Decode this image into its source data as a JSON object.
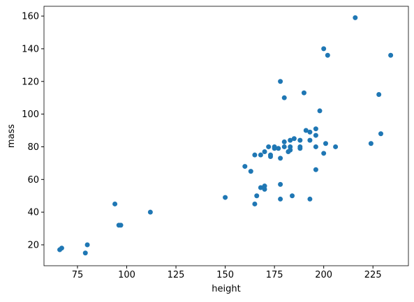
{
  "chart_data": {
    "type": "scatter",
    "x_label": "height",
    "y_label": "mass",
    "color": "#1f77b4",
    "x": [
      66,
      67,
      79,
      80,
      94,
      96,
      97,
      112,
      150,
      160,
      163,
      165,
      166,
      165,
      168,
      168,
      170,
      170,
      170,
      172,
      173,
      173,
      175,
      175,
      177,
      178,
      178,
      178,
      178,
      180,
      180,
      180,
      182,
      183,
      183,
      183,
      184,
      185,
      188,
      188,
      188,
      190,
      191,
      193,
      193,
      193,
      196,
      196,
      196,
      196,
      198,
      200,
      200,
      201,
      202,
      206,
      216,
      224,
      228,
      229,
      234
    ],
    "values": [
      17,
      18,
      15,
      20,
      45,
      32,
      32,
      40,
      49,
      68,
      65,
      45,
      50,
      75,
      75,
      55,
      54,
      56,
      77,
      80,
      74,
      75,
      80,
      79,
      79,
      120,
      57,
      73,
      48,
      110,
      80,
      83,
      77,
      78,
      80,
      84,
      50,
      85,
      80,
      84,
      79,
      113,
      90,
      48,
      89,
      84,
      66,
      87,
      80,
      91,
      102,
      140,
      76,
      82,
      136,
      80,
      159,
      82,
      112,
      88,
      136
    ],
    "xlim": [
      58,
      243
    ],
    "ylim": [
      7.2,
      166
    ],
    "xticks": [
      75,
      100,
      125,
      150,
      175,
      200,
      225
    ],
    "yticks": [
      20,
      40,
      60,
      80,
      100,
      120,
      140,
      160
    ]
  }
}
